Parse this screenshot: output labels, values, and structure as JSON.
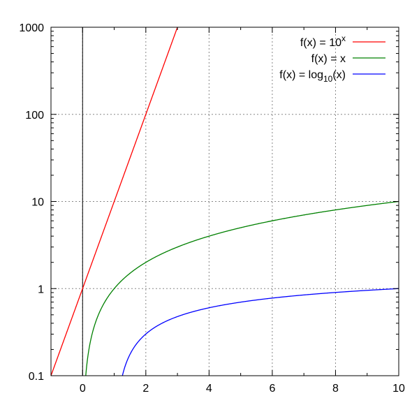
{
  "chart_data": {
    "type": "line",
    "title": "",
    "xlabel": "",
    "ylabel": "",
    "x_range": [
      -1,
      10
    ],
    "y_range": [
      0.1,
      1000
    ],
    "y_scale": "log",
    "grid": true,
    "legend_position": "top-right",
    "x_ticks": [
      0,
      2,
      4,
      6,
      8,
      10
    ],
    "x_tick_labels": [
      "0",
      "2",
      "4",
      "6",
      "8",
      "10"
    ],
    "y_ticks": [
      0.1,
      1,
      10,
      100,
      1000
    ],
    "y_tick_labels": [
      "0.1",
      "1",
      "10",
      "100",
      "1000"
    ],
    "vertical_line_at_x": 0,
    "series": [
      {
        "name": "f(x) = 10",
        "name_superscript": "x",
        "color": "#ff0000",
        "function": "10^x",
        "x": [
          -1,
          0,
          1,
          2,
          3
        ],
        "y": [
          0.1,
          1,
          10,
          100,
          1000
        ]
      },
      {
        "name": "f(x) = x",
        "color": "#008000",
        "function": "x",
        "x": [
          0.1,
          0.5,
          1,
          2,
          4,
          6,
          8,
          10
        ],
        "y": [
          0.1,
          0.5,
          1,
          2,
          4,
          6,
          8,
          10
        ]
      },
      {
        "name": "f(x) = log",
        "name_subscript": "10",
        "name_suffix": "(x)",
        "color": "#0000ff",
        "function": "log10(x)",
        "x": [
          1.259,
          2,
          4,
          6,
          8,
          10
        ],
        "y": [
          0.1,
          0.301,
          0.602,
          0.778,
          0.903,
          1
        ]
      }
    ]
  }
}
